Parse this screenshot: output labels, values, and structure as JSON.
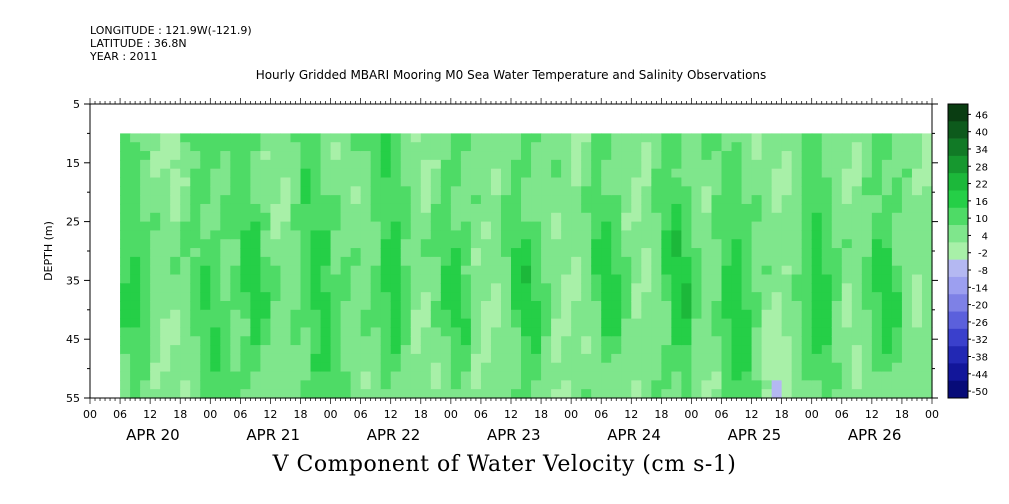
{
  "header": {
    "longitude": "LONGITUDE : 121.9W(-121.9)",
    "latitude": "LATITUDE : 36.8N",
    "year": "YEAR : 2011"
  },
  "chart_data": {
    "type": "heatmap",
    "title": "Hourly Gridded MBARI Mooring M0 Sea Water Temperature and Salinity Observations",
    "xlabel": "V Component of Water Velocity (cm s-1)",
    "ylabel": "DEPTH (m)",
    "ylim": [
      55,
      5
    ],
    "yticks": [
      5,
      15,
      25,
      35,
      45,
      55
    ],
    "xlim_hours": [
      0,
      168
    ],
    "data_start_hour": 6,
    "data_depth_range": [
      10,
      55
    ],
    "hour_tick_labels": [
      "00",
      "06",
      "12",
      "18",
      "00",
      "06",
      "12",
      "18",
      "00",
      "06",
      "12",
      "18",
      "00",
      "06",
      "12",
      "18",
      "00",
      "06",
      "12",
      "18",
      "00",
      "06",
      "12",
      "18",
      "00",
      "06",
      "12",
      "18",
      "00"
    ],
    "day_labels": [
      "APR 20",
      "APR 21",
      "APR 22",
      "APR 23",
      "APR 24",
      "APR 25",
      "APR 26"
    ],
    "colorbar": {
      "ticks": [
        46,
        40,
        34,
        28,
        22,
        16,
        10,
        4,
        -2,
        -8,
        -14,
        -20,
        -26,
        -32,
        -38,
        -44,
        -50
      ],
      "colors": [
        "#0a3d12",
        "#0d5a1c",
        "#117a26",
        "#16982f",
        "#1cb83a",
        "#25cf47",
        "#4edb66",
        "#7fe68c",
        "#a8f0a8",
        "#b4b8f2",
        "#9c9ff0",
        "#7e81e6",
        "#5b60dc",
        "#3a40cc",
        "#2228b4",
        "#12169a",
        "#070b78"
      ]
    },
    "colorbar_values": [
      46,
      40,
      34,
      28,
      22,
      16,
      10,
      4,
      -2,
      -8,
      -14,
      -20,
      -26,
      -32,
      -38,
      -44,
      -50
    ],
    "ridges_green": [
      {
        "hour": 8,
        "strength": 0.8
      },
      {
        "hour": 23,
        "strength": 0.6
      },
      {
        "hour": 32,
        "strength": 0.8
      },
      {
        "hour": 45,
        "strength": 0.9
      },
      {
        "hour": 60,
        "strength": 0.9
      },
      {
        "hour": 72,
        "strength": 0.7
      },
      {
        "hour": 86,
        "strength": 0.8
      },
      {
        "hour": 103,
        "strength": 0.8
      },
      {
        "hour": 117,
        "strength": 1.0
      },
      {
        "hour": 128,
        "strength": 0.9
      },
      {
        "hour": 145,
        "strength": 0.9
      },
      {
        "hour": 158,
        "strength": 0.8
      }
    ],
    "troughs_blue": [
      {
        "hour": 15,
        "strength": 0.7
      },
      {
        "hour": 38,
        "strength": 0.6
      },
      {
        "hour": 66,
        "strength": 0.8
      },
      {
        "hour": 80,
        "strength": 0.8
      },
      {
        "hour": 96,
        "strength": 0.7
      },
      {
        "hour": 110,
        "strength": 0.8
      },
      {
        "hour": 124,
        "strength": 0.7
      },
      {
        "hour": 139,
        "strength": 0.8
      },
      {
        "hour": 152,
        "strength": 0.7
      },
      {
        "hour": 165,
        "strength": 0.6
      }
    ]
  }
}
